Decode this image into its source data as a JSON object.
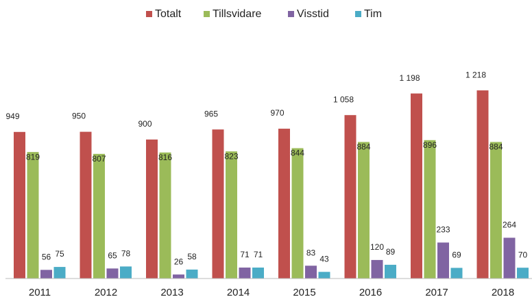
{
  "chart_data": {
    "type": "bar",
    "categories": [
      "2011",
      "2012",
      "2013",
      "2014",
      "2015",
      "2016",
      "2017",
      "2018"
    ],
    "series": [
      {
        "name": "Totalt",
        "color": "#c0504d",
        "values": [
          949,
          950,
          900,
          965,
          970,
          1058,
          1198,
          1218
        ],
        "value_labels": [
          "949",
          "950",
          "900",
          "965",
          "970",
          "1 058",
          "1 198",
          "1 218"
        ]
      },
      {
        "name": "Tillsvidare",
        "color": "#9bbb59",
        "values": [
          819,
          807,
          816,
          823,
          844,
          884,
          896,
          884
        ]
      },
      {
        "name": "Visstid",
        "color": "#8064a2",
        "values": [
          56,
          65,
          26,
          71,
          83,
          120,
          233,
          264
        ]
      },
      {
        "name": "Tim",
        "color": "#4bacc6",
        "values": [
          75,
          78,
          58,
          71,
          43,
          89,
          69,
          70
        ]
      }
    ],
    "ylim": [
      0,
      1400
    ],
    "legend": "top"
  }
}
